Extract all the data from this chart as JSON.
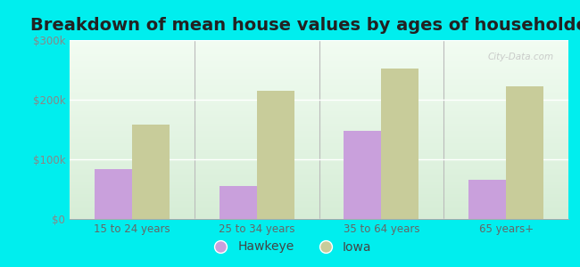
{
  "title": "Breakdown of mean house values by ages of householders",
  "categories": [
    "15 to 24 years",
    "25 to 34 years",
    "35 to 64 years",
    "65 years+"
  ],
  "hawkeye_values": [
    83000,
    55000,
    148000,
    65000
  ],
  "iowa_values": [
    158000,
    215000,
    252000,
    222000
  ],
  "hawkeye_color": "#c9a0dc",
  "iowa_color": "#c8cc9a",
  "background_color": "#00eeee",
  "ylim": [
    0,
    300000
  ],
  "yticks": [
    0,
    100000,
    200000,
    300000
  ],
  "ytick_labels": [
    "$0",
    "$100k",
    "$200k",
    "$300k"
  ],
  "legend_hawkeye": "Hawkeye",
  "legend_iowa": "Iowa",
  "title_fontsize": 14,
  "bar_width": 0.3
}
